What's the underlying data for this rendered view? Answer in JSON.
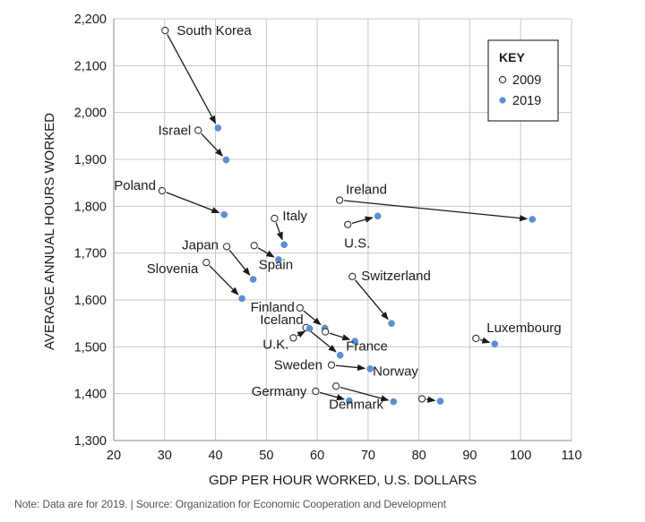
{
  "chart_data": {
    "type": "scatter",
    "title": "",
    "xlabel": "GDP PER HOUR WORKED, U.S. DOLLARS",
    "ylabel": "AVERAGE ANNUAL HOURS WORKED",
    "xlim": [
      20,
      110
    ],
    "ylim": [
      1300,
      2200
    ],
    "x_ticks": [
      "20",
      "30",
      "40",
      "50",
      "60",
      "70",
      "80",
      "90",
      "100",
      "110"
    ],
    "y_ticks": [
      "1,300",
      "1,400",
      "1,500",
      "1,600",
      "1,700",
      "1,800",
      "1,900",
      "2,000",
      "2,100",
      "2,200"
    ],
    "grid": true,
    "legend": {
      "title": "KEY",
      "position": "top-right",
      "entries": [
        {
          "label": "2009",
          "style": "hollow"
        },
        {
          "label": "2019",
          "style": "filled"
        }
      ]
    },
    "colors": {
      "filled": "#5b8fd1",
      "axis": "#333333",
      "grid": "#c8c8c8",
      "text": "#1a1a1a"
    },
    "series": [
      {
        "name": "South Korea",
        "x2009": 30.1,
        "y2009": 2175,
        "x2019": 40.5,
        "y2019": 1967
      },
      {
        "name": "Israel",
        "x2009": 36.6,
        "y2009": 1962,
        "x2019": 42.1,
        "y2019": 1899
      },
      {
        "name": "Poland",
        "x2009": 29.5,
        "y2009": 1833,
        "x2019": 41.7,
        "y2019": 1782
      },
      {
        "name": "Ireland",
        "x2009": 64.4,
        "y2009": 1813,
        "x2019": 102.3,
        "y2019": 1772
      },
      {
        "name": "Italy",
        "x2009": 51.6,
        "y2009": 1774,
        "x2019": 53.5,
        "y2019": 1718
      },
      {
        "name": "U.S.",
        "x2009": 66.0,
        "y2009": 1761,
        "x2019": 71.9,
        "y2019": 1779
      },
      {
        "name": "Japan",
        "x2009": 42.2,
        "y2009": 1714,
        "x2019": 47.4,
        "y2019": 1644
      },
      {
        "name": "Spain",
        "x2009": 47.6,
        "y2009": 1716,
        "x2019": 52.4,
        "y2019": 1686
      },
      {
        "name": "Slovenia",
        "x2009": 38.2,
        "y2009": 1680,
        "x2019": 45.2,
        "y2019": 1603
      },
      {
        "name": "Switzerland",
        "x2009": 66.9,
        "y2009": 1650,
        "x2019": 74.6,
        "y2019": 1550
      },
      {
        "name": "Finland",
        "x2009": 56.6,
        "y2009": 1583,
        "x2019": 61.5,
        "y2019": 1540
      },
      {
        "name": "Iceland",
        "x2009": 57.8,
        "y2009": 1541,
        "x2019": 64.5,
        "y2019": 1482
      },
      {
        "name": "U.K.",
        "x2009": 55.3,
        "y2009": 1519,
        "x2019": 58.5,
        "y2019": 1539
      },
      {
        "name": "France",
        "x2009": 61.6,
        "y2009": 1532,
        "x2019": 67.4,
        "y2019": 1512
      },
      {
        "name": "Luxembourg",
        "x2009": 91.2,
        "y2009": 1518,
        "x2019": 94.9,
        "y2019": 1506
      },
      {
        "name": "Sweden",
        "x2009": 62.8,
        "y2009": 1461,
        "x2019": 70.4,
        "y2019": 1453
      },
      {
        "name": "Germany",
        "x2009": 59.7,
        "y2009": 1405,
        "x2019": 66.3,
        "y2019": 1385
      },
      {
        "name": "Denmark",
        "x2009": 63.7,
        "y2009": 1416,
        "x2019": 75.0,
        "y2019": 1383
      },
      {
        "name": "Norway",
        "x2009": 80.6,
        "y2009": 1389,
        "x2019": 84.2,
        "y2019": 1384
      }
    ]
  },
  "note": "Note: Data are for 2019. | Source: Organization for Economic Cooperation and Development"
}
